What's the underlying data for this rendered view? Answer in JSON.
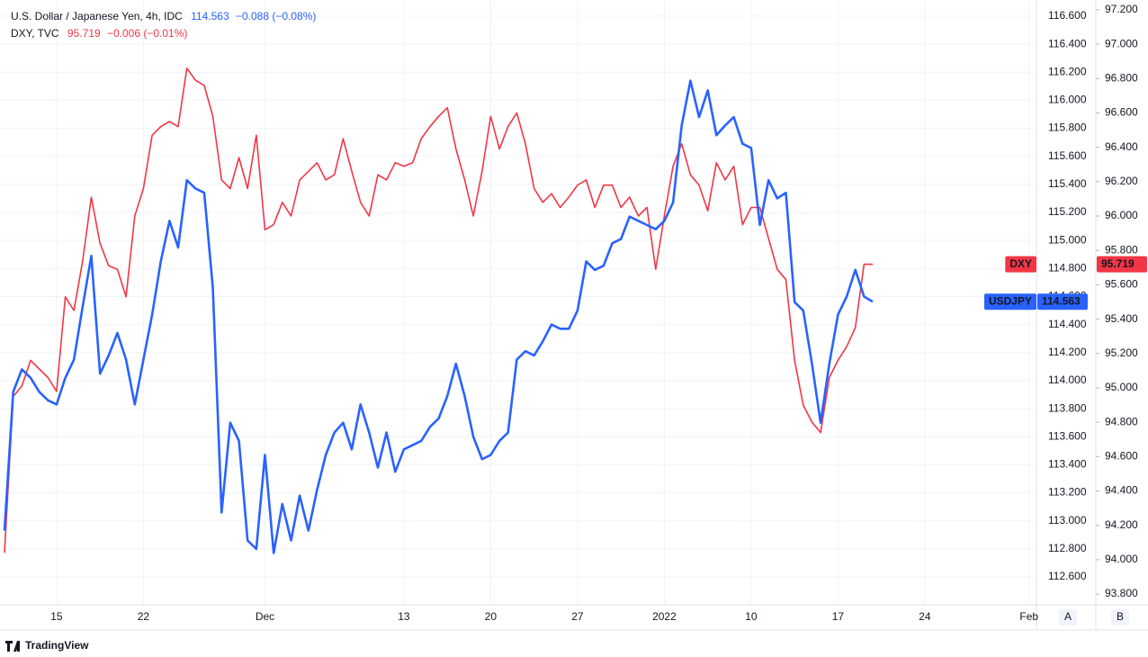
{
  "chart_data": {
    "type": "line",
    "branding": "TradingView",
    "scale_buttons": [
      "A",
      "B"
    ],
    "grid": true,
    "xlim": [
      0,
      118.65
    ],
    "xticks": [
      {
        "value": 6,
        "label": "15"
      },
      {
        "value": 16,
        "label": "22"
      },
      {
        "value": 30,
        "label": "Dec"
      },
      {
        "value": 46,
        "label": "13"
      },
      {
        "value": 56,
        "label": "20"
      },
      {
        "value": 66,
        "label": "27"
      },
      {
        "value": 76,
        "label": "2022"
      },
      {
        "value": 86,
        "label": "10"
      },
      {
        "value": 96,
        "label": "17"
      },
      {
        "value": 106,
        "label": "24"
      },
      {
        "value": 118,
        "label": "Feb"
      }
    ],
    "ylim": [
      112.414,
      116.683
    ],
    "yticks": [
      {
        "value": 112.6,
        "label": "112.600"
      },
      {
        "value": 112.8,
        "label": "112.800"
      },
      {
        "value": 113.0,
        "label": "113.000"
      },
      {
        "value": 113.2,
        "label": "113.200"
      },
      {
        "value": 113.4,
        "label": "113.400"
      },
      {
        "value": 113.6,
        "label": "113.600"
      },
      {
        "value": 113.8,
        "label": "113.800"
      },
      {
        "value": 114.0,
        "label": "114.000"
      },
      {
        "value": 114.2,
        "label": "114.200"
      },
      {
        "value": 114.4,
        "label": "114.400"
      },
      {
        "value": 114.6,
        "label": "114.600"
      },
      {
        "value": 114.8,
        "label": "114.800"
      },
      {
        "value": 115.0,
        "label": "115.000"
      },
      {
        "value": 115.2,
        "label": "115.200"
      },
      {
        "value": 115.4,
        "label": "115.400"
      },
      {
        "value": 115.6,
        "label": "115.600"
      },
      {
        "value": 115.8,
        "label": "115.800"
      },
      {
        "value": 116.0,
        "label": "116.000"
      },
      {
        "value": 116.2,
        "label": "116.200"
      },
      {
        "value": 116.4,
        "label": "116.400"
      },
      {
        "value": 116.6,
        "label": "116.600"
      }
    ],
    "y2lim": [
      93.748,
      97.231
    ],
    "y2ticks": [
      {
        "value": 93.8,
        "label": "93.800"
      },
      {
        "value": 94.0,
        "label": "94.000"
      },
      {
        "value": 94.2,
        "label": "94.200"
      },
      {
        "value": 94.4,
        "label": "94.400"
      },
      {
        "value": 94.6,
        "label": "94.600"
      },
      {
        "value": 94.8,
        "label": "94.800"
      },
      {
        "value": 95.0,
        "label": "95.000"
      },
      {
        "value": 95.2,
        "label": "95.200"
      },
      {
        "value": 95.4,
        "label": "95.400"
      },
      {
        "value": 95.6,
        "label": "95.600"
      },
      {
        "value": 95.8,
        "label": "95.800"
      },
      {
        "value": 96.0,
        "label": "96.000"
      },
      {
        "value": 96.2,
        "label": "96.200"
      },
      {
        "value": 96.4,
        "label": "96.400"
      },
      {
        "value": 96.6,
        "label": "96.600"
      },
      {
        "value": 96.8,
        "label": "96.800"
      },
      {
        "value": 97.0,
        "label": "97.000"
      },
      {
        "value": 97.2,
        "label": "97.200"
      }
    ],
    "series": [
      {
        "name": "USDJPY",
        "legend": "U.S. Dollar / Japanese Yen, 4h, IDC",
        "change": "−0.088 (−0.08%)",
        "color": "#2962ff",
        "axis": "y",
        "values": [
          112.93,
          113.92,
          114.08,
          114.02,
          113.92,
          113.86,
          113.83,
          114.02,
          114.15,
          114.53,
          114.89,
          114.05,
          114.18,
          114.34,
          114.15,
          113.83,
          114.15,
          114.47,
          114.85,
          115.14,
          114.95,
          115.43,
          115.37,
          115.34,
          114.66,
          113.06,
          113.7,
          113.57,
          112.86,
          112.8,
          113.47,
          112.77,
          113.12,
          112.86,
          113.18,
          112.93,
          113.22,
          113.47,
          113.63,
          113.7,
          113.51,
          113.83,
          113.63,
          113.38,
          113.63,
          113.35,
          113.51,
          113.54,
          113.57,
          113.67,
          113.73,
          113.89,
          114.12,
          113.89,
          113.6,
          113.44,
          113.47,
          113.57,
          113.63,
          114.15,
          114.21,
          114.18,
          114.28,
          114.4,
          114.37,
          114.37,
          114.5,
          114.85,
          114.79,
          114.82,
          114.98,
          115.01,
          115.17,
          115.14,
          115.11,
          115.08,
          115.14,
          115.27,
          115.82,
          116.14,
          115.88,
          116.07,
          115.75,
          115.82,
          115.88,
          115.69,
          115.66,
          115.11,
          115.43,
          115.3,
          115.34,
          114.56,
          114.5,
          114.12,
          113.7,
          114.12,
          114.47,
          114.6,
          114.79,
          114.6,
          114.563
        ]
      },
      {
        "name": "DXY",
        "legend": "DXY, TVC",
        "change": "−0.006 (−0.01%)",
        "color": "#f23645",
        "axis": "y2",
        "values": [
          94.04,
          94.95,
          95.01,
          95.16,
          95.11,
          95.06,
          94.98,
          95.53,
          95.45,
          95.74,
          96.11,
          95.84,
          95.71,
          95.69,
          95.53,
          96.0,
          96.16,
          96.47,
          96.52,
          96.55,
          96.52,
          96.86,
          96.79,
          96.76,
          96.58,
          96.21,
          96.16,
          96.34,
          96.16,
          96.47,
          95.92,
          95.95,
          96.08,
          96.0,
          96.21,
          96.26,
          96.31,
          96.21,
          96.24,
          96.45,
          96.26,
          96.08,
          96.0,
          96.24,
          96.21,
          96.31,
          96.29,
          96.31,
          96.45,
          96.52,
          96.58,
          96.63,
          96.39,
          96.21,
          96.0,
          96.26,
          96.58,
          96.39,
          96.52,
          96.6,
          96.42,
          96.16,
          96.08,
          96.13,
          96.05,
          96.11,
          96.18,
          96.21,
          96.05,
          96.18,
          96.18,
          96.05,
          96.11,
          96.0,
          96.05,
          95.69,
          96.0,
          96.29,
          96.42,
          96.24,
          96.18,
          96.03,
          96.31,
          96.21,
          96.29,
          95.95,
          96.05,
          96.05,
          95.87,
          95.69,
          95.63,
          95.16,
          94.9,
          94.8,
          94.74,
          95.06,
          95.16,
          95.24,
          95.35,
          95.72,
          95.719
        ]
      }
    ]
  }
}
